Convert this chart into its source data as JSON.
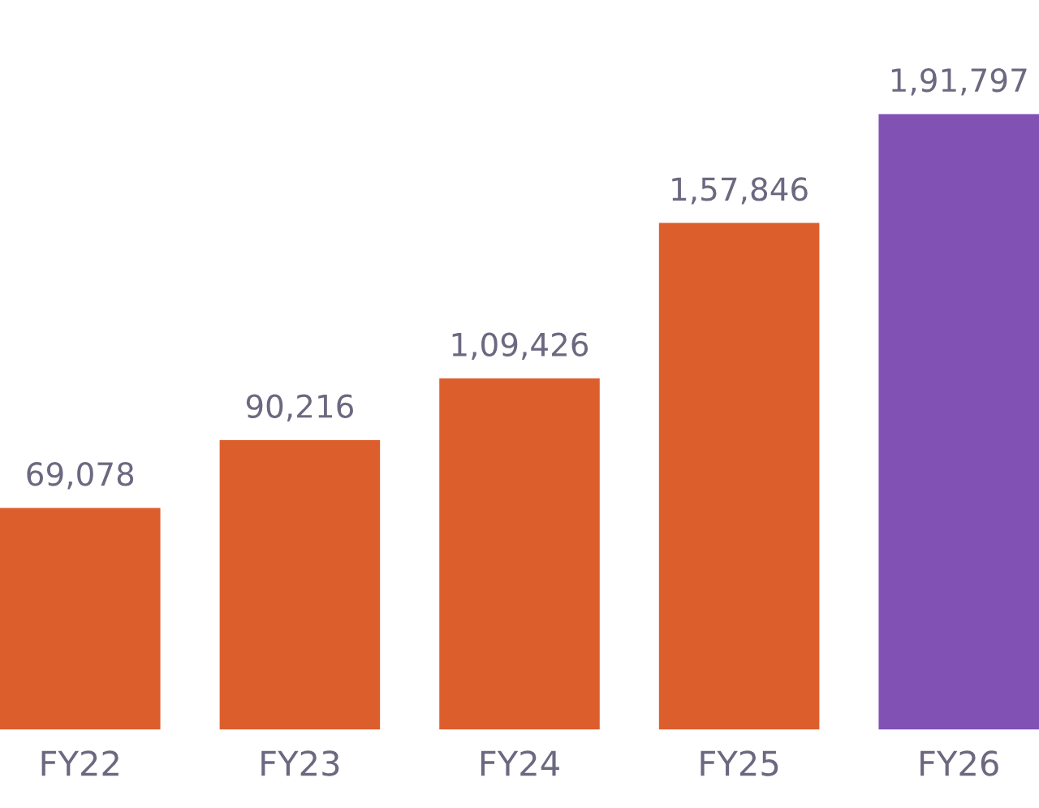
{
  "chart_data": {
    "type": "bar",
    "categories": [
      "FY22",
      "FY23",
      "FY24",
      "FY25",
      "FY26"
    ],
    "values": [
      69078,
      90216,
      109426,
      157846,
      191797
    ],
    "colors": [
      "#dd5e2d",
      "#dd5e2d",
      "#dd5e2d",
      "#dd5e2d",
      "#8152b4"
    ],
    "value_labels": [
      "69,078",
      "90,216",
      "1,09,426",
      "1,57,846",
      "1,91,797"
    ],
    "grid": false
  }
}
